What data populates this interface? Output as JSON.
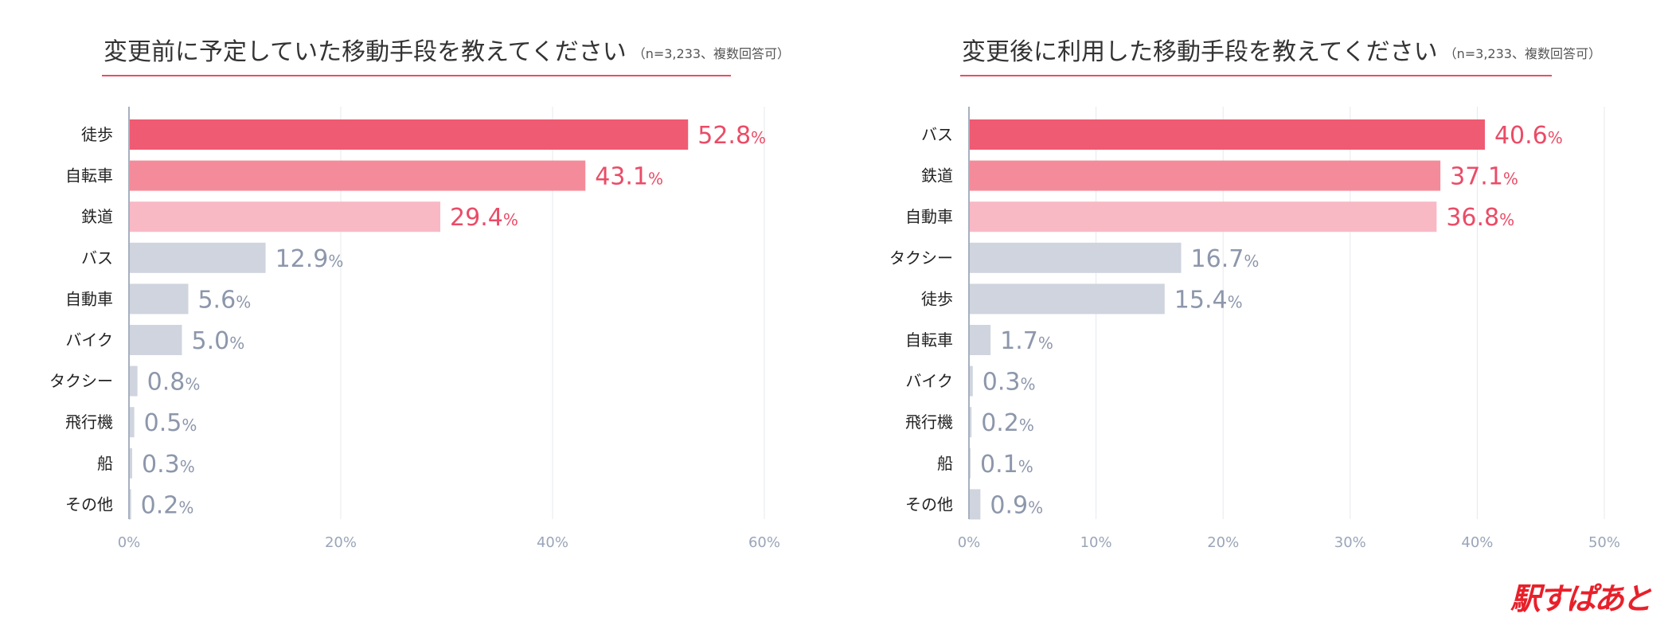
{
  "colors": {
    "highlight_1": "#ef5b72",
    "highlight_2": "#f48b9a",
    "highlight_3": "#f8b9c5",
    "muted_bar": "#cfd4de",
    "accent_value": "#ea4c67",
    "muted_value": "#8d97ab",
    "title_rule": "#ea4c67",
    "grid": "#e6e8ee",
    "axis": "#a7b0c0"
  },
  "chart_data": [
    {
      "type": "bar",
      "orientation": "horizontal",
      "title": "変更前に予定していた移動手段を教えてください",
      "subtitle": "（n=3,233、複数回答可）",
      "categories": [
        "徒歩",
        "自転車",
        "鉄道",
        "バス",
        "自動車",
        "バイク",
        "タクシー",
        "飛行機",
        "船",
        "その他"
      ],
      "values": [
        52.8,
        43.1,
        29.4,
        12.9,
        5.6,
        5.0,
        0.8,
        0.5,
        0.3,
        0.2
      ],
      "value_labels": [
        "52.8",
        "43.1",
        "29.4",
        "12.9",
        "5.6",
        "5.0",
        "0.8",
        "0.5",
        "0.3",
        "0.2"
      ],
      "unit": "%",
      "xlim": [
        0,
        60
      ],
      "xticks": [
        0,
        20,
        40,
        60
      ],
      "xtick_labels": [
        "0%",
        "20%",
        "40%",
        "60%"
      ],
      "highlight_count": 3,
      "grid": true
    },
    {
      "type": "bar",
      "orientation": "horizontal",
      "title": "変更後に利用した移動手段を教えてください",
      "subtitle": "（n=3,233、複数回答可）",
      "categories": [
        "バス",
        "鉄道",
        "自動車",
        "タクシー",
        "徒歩",
        "自転車",
        "バイク",
        "飛行機",
        "船",
        "その他"
      ],
      "values": [
        40.6,
        37.1,
        36.8,
        16.7,
        15.4,
        1.7,
        0.3,
        0.2,
        0.1,
        0.9
      ],
      "value_labels": [
        "40.6",
        "37.1",
        "36.8",
        "16.7",
        "15.4",
        "1.7",
        "0.3",
        "0.2",
        "0.1",
        "0.9"
      ],
      "unit": "%",
      "xlim": [
        0,
        50
      ],
      "xticks": [
        0,
        10,
        20,
        30,
        40,
        50
      ],
      "xtick_labels": [
        "0%",
        "10%",
        "20%",
        "30%",
        "40%",
        "50%"
      ],
      "highlight_count": 3,
      "grid": true
    }
  ],
  "logo": {
    "text": "駅すぱあと"
  }
}
